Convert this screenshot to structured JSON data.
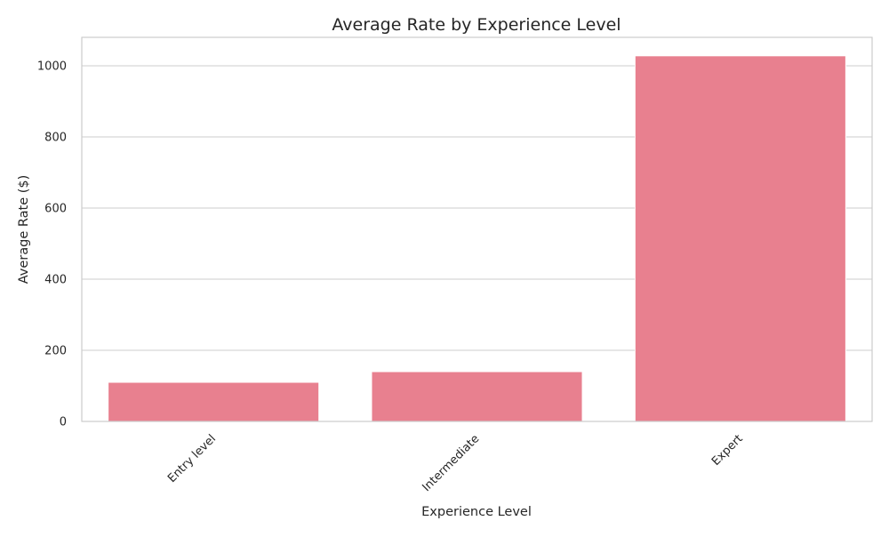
{
  "chart_data": {
    "type": "bar",
    "title": "Average Rate by Experience Level",
    "xlabel": "Experience Level",
    "ylabel": "Average Rate ($)",
    "categories": [
      "Entry level",
      "Intermediate",
      "Expert"
    ],
    "values": [
      110,
      140,
      1028
    ],
    "ylim": [
      0,
      1080
    ],
    "yticks": [
      0,
      200,
      400,
      600,
      800,
      1000
    ],
    "grid": true,
    "bar_color": "#e8808f",
    "x_tick_rotation_deg": 45
  }
}
